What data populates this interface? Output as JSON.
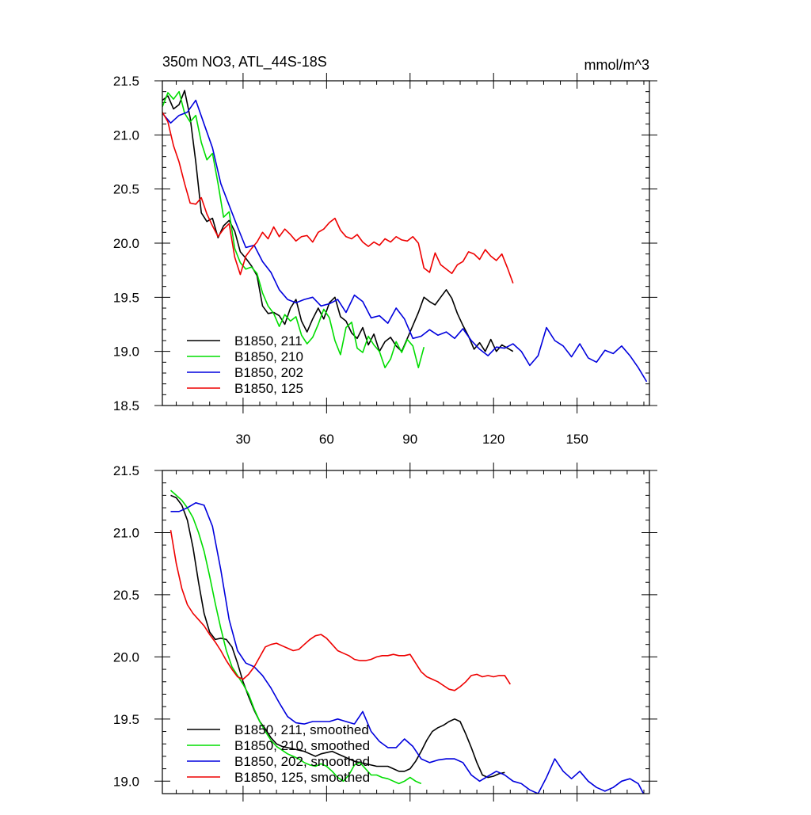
{
  "chart_data": [
    {
      "type": "line",
      "title": "350m NO3, ATL_44S-18S",
      "units": "mmol/m^3",
      "xlabel": "",
      "ylabel": "",
      "xlim": [
        1,
        176
      ],
      "ylim": [
        18.5,
        21.5
      ],
      "xticks": [
        30,
        60,
        90,
        120,
        150
      ],
      "yticks": [
        18.5,
        19.0,
        19.5,
        20.0,
        20.5,
        21.0,
        21.5
      ],
      "xtick_labels": [
        "30",
        "60",
        "90",
        "120",
        "150"
      ],
      "ytick_labels": [
        "18.5",
        "19.0",
        "19.5",
        "20.0",
        "20.5",
        "21.0",
        "21.5"
      ],
      "legend_position": "bottom-left",
      "series": [
        {
          "name": "B1850, 211",
          "color": "#000000",
          "x": [
            1,
            3,
            5,
            7,
            9,
            11,
            13,
            15,
            17,
            19,
            21,
            23,
            25,
            27,
            29,
            31,
            33,
            35,
            37,
            39,
            41,
            43,
            45,
            47,
            49,
            51,
            53,
            55,
            57,
            59,
            61,
            63,
            65,
            67,
            69,
            71,
            73,
            75,
            77,
            79,
            81,
            83,
            85,
            87,
            89,
            91,
            93,
            95,
            97,
            99,
            101,
            103,
            105,
            107,
            109,
            111,
            113,
            115,
            117,
            119,
            121,
            123,
            125,
            127
          ],
          "y": [
            21.32,
            21.36,
            21.24,
            21.28,
            21.41,
            21.16,
            20.75,
            20.28,
            20.2,
            20.23,
            20.05,
            20.16,
            20.21,
            20.11,
            19.92,
            19.86,
            19.79,
            19.7,
            19.42,
            19.35,
            19.36,
            19.33,
            19.25,
            19.4,
            19.48,
            19.28,
            19.18,
            19.3,
            19.4,
            19.3,
            19.45,
            19.5,
            19.32,
            19.28,
            19.17,
            19.12,
            19.22,
            19.06,
            19.16,
            19.0,
            19.09,
            19.13,
            19.05,
            19.0,
            19.12,
            19.24,
            19.36,
            19.5,
            19.46,
            19.43,
            19.5,
            19.57,
            19.49,
            19.35,
            19.24,
            19.14,
            19.02,
            19.08,
            19.0,
            19.11,
            19.0,
            19.06,
            19.03,
            19.0
          ]
        },
        {
          "name": "B1850, 210",
          "color": "#00dd00",
          "x": [
            1,
            3,
            5,
            7,
            9,
            11,
            13,
            15,
            17,
            19,
            21,
            23,
            25,
            27,
            29,
            31,
            33,
            35,
            37,
            39,
            41,
            43,
            45,
            47,
            49,
            51,
            53,
            55,
            57,
            59,
            61,
            63,
            65,
            67,
            69,
            71,
            73,
            75,
            77,
            79,
            81,
            83,
            85,
            87,
            89,
            91,
            93,
            95
          ],
          "y": [
            21.26,
            21.39,
            21.33,
            21.4,
            21.2,
            21.12,
            21.18,
            20.93,
            20.77,
            20.83,
            20.55,
            20.24,
            20.29,
            19.95,
            19.82,
            19.76,
            19.78,
            19.72,
            19.54,
            19.42,
            19.35,
            19.23,
            19.34,
            19.28,
            19.32,
            19.15,
            19.07,
            19.13,
            19.25,
            19.39,
            19.31,
            19.1,
            18.97,
            19.22,
            19.27,
            19.03,
            18.99,
            19.14,
            19.06,
            19.0,
            18.85,
            18.93,
            19.09,
            18.99,
            19.11,
            19.05,
            18.85,
            19.04
          ]
        },
        {
          "name": "B1850, 202",
          "color": "#0000dd",
          "x": [
            1,
            4,
            7,
            10,
            13,
            16,
            19,
            22,
            25,
            28,
            31,
            34,
            37,
            40,
            43,
            46,
            49,
            52,
            55,
            58,
            61,
            64,
            67,
            70,
            73,
            76,
            79,
            82,
            85,
            88,
            91,
            94,
            97,
            100,
            103,
            106,
            109,
            112,
            115,
            118,
            121,
            124,
            127,
            130,
            133,
            136,
            139,
            142,
            145,
            148,
            151,
            154,
            157,
            160,
            163,
            166,
            169,
            172,
            175
          ],
          "y": [
            21.2,
            21.11,
            21.18,
            21.21,
            21.32,
            21.1,
            20.88,
            20.55,
            20.35,
            20.15,
            19.96,
            19.98,
            19.83,
            19.73,
            19.57,
            19.48,
            19.45,
            19.48,
            19.5,
            19.42,
            19.44,
            19.48,
            19.36,
            19.52,
            19.46,
            19.31,
            19.33,
            19.26,
            19.4,
            19.3,
            19.12,
            19.14,
            19.2,
            19.15,
            19.18,
            19.12,
            19.21,
            19.1,
            19.02,
            18.96,
            19.04,
            19.03,
            19.07,
            19.0,
            18.87,
            18.96,
            19.22,
            19.1,
            19.05,
            18.95,
            19.07,
            18.94,
            18.9,
            19.01,
            18.98,
            19.05,
            18.96,
            18.85,
            18.72
          ]
        },
        {
          "name": "B1850, 125",
          "color": "#ee0000",
          "x": [
            1,
            3,
            5,
            7,
            9,
            11,
            13,
            15,
            17,
            19,
            21,
            23,
            25,
            27,
            29,
            31,
            33,
            35,
            37,
            39,
            41,
            43,
            45,
            47,
            49,
            51,
            53,
            55,
            57,
            59,
            61,
            63,
            65,
            67,
            69,
            71,
            73,
            75,
            77,
            79,
            81,
            83,
            85,
            87,
            89,
            91,
            93,
            95,
            97,
            99,
            101,
            103,
            105,
            107,
            109,
            111,
            113,
            115,
            117,
            119,
            121,
            123,
            125,
            127
          ],
          "y": [
            21.21,
            21.12,
            20.9,
            20.75,
            20.55,
            20.37,
            20.36,
            20.42,
            20.27,
            20.16,
            20.06,
            20.13,
            20.18,
            19.87,
            19.71,
            19.88,
            19.95,
            20.01,
            20.1,
            20.04,
            20.15,
            20.06,
            20.13,
            20.08,
            20.02,
            20.06,
            20.07,
            20.01,
            20.1,
            20.13,
            20.19,
            20.23,
            20.12,
            20.06,
            20.04,
            20.08,
            20.01,
            19.97,
            20.01,
            19.98,
            20.04,
            20.01,
            20.06,
            20.03,
            20.02,
            20.06,
            20.0,
            19.77,
            19.73,
            19.91,
            19.8,
            19.76,
            19.72,
            19.8,
            19.83,
            19.92,
            19.9,
            19.85,
            19.94,
            19.88,
            19.84,
            19.9,
            19.77,
            19.63
          ]
        }
      ]
    },
    {
      "type": "line",
      "title": "",
      "xlabel": "",
      "ylabel": "",
      "xlim": [
        1,
        176
      ],
      "ylim": [
        18.9,
        21.5
      ],
      "xticks": [
        30,
        60,
        90,
        120,
        150
      ],
      "yticks": [
        19.0,
        19.5,
        20.0,
        20.5,
        21.0,
        21.5
      ],
      "ytick_labels": [
        "19.0",
        "19.5",
        "20.0",
        "20.5",
        "21.0",
        "21.5"
      ],
      "legend_position": "bottom-left",
      "series": [
        {
          "name": "B1850, 211, smoothed",
          "color": "#000000",
          "x": [
            4,
            6,
            8,
            10,
            12,
            14,
            16,
            18,
            20,
            22,
            24,
            26,
            28,
            30,
            32,
            34,
            36,
            38,
            40,
            42,
            44,
            46,
            48,
            50,
            52,
            54,
            56,
            58,
            60,
            62,
            64,
            66,
            68,
            70,
            72,
            74,
            76,
            78,
            80,
            82,
            84,
            86,
            88,
            90,
            92,
            94,
            96,
            98,
            100,
            102,
            104,
            106,
            108,
            110,
            112,
            114,
            116,
            118,
            120,
            122,
            124
          ],
          "y": [
            21.3,
            21.28,
            21.22,
            21.1,
            20.88,
            20.6,
            20.35,
            20.2,
            20.14,
            20.15,
            20.14,
            20.08,
            19.95,
            19.8,
            19.68,
            19.57,
            19.48,
            19.42,
            19.35,
            19.3,
            19.28,
            19.27,
            19.26,
            19.25,
            19.24,
            19.22,
            19.2,
            19.22,
            19.23,
            19.24,
            19.22,
            19.2,
            19.18,
            19.16,
            19.15,
            19.14,
            19.13,
            19.12,
            19.12,
            19.12,
            19.1,
            19.08,
            19.08,
            19.1,
            19.16,
            19.24,
            19.33,
            19.4,
            19.43,
            19.45,
            19.48,
            19.5,
            19.48,
            19.38,
            19.27,
            19.15,
            19.05,
            19.03,
            19.04,
            19.06,
            19.07
          ]
        },
        {
          "name": "B1850, 210, smoothed",
          "color": "#00dd00",
          "x": [
            4,
            6,
            8,
            10,
            12,
            14,
            16,
            18,
            20,
            22,
            24,
            26,
            28,
            30,
            32,
            34,
            36,
            38,
            40,
            42,
            44,
            46,
            48,
            50,
            52,
            54,
            56,
            58,
            60,
            62,
            64,
            66,
            68,
            70,
            72,
            74,
            76,
            78,
            80,
            82,
            84,
            86,
            88,
            90,
            92,
            94
          ],
          "y": [
            21.34,
            21.3,
            21.26,
            21.2,
            21.12,
            21.0,
            20.85,
            20.65,
            20.43,
            20.23,
            20.05,
            19.92,
            19.85,
            19.78,
            19.7,
            19.58,
            19.48,
            19.4,
            19.33,
            19.28,
            19.25,
            19.22,
            19.2,
            19.18,
            19.15,
            19.13,
            19.12,
            19.14,
            19.12,
            19.08,
            19.03,
            19.0,
            19.05,
            19.13,
            19.15,
            19.1,
            19.05,
            19.05,
            19.03,
            19.02,
            19.0,
            18.98,
            19.0,
            19.03,
            19.0,
            18.98
          ]
        },
        {
          "name": "B1850, 202, smoothed",
          "color": "#0000dd",
          "x": [
            4,
            7,
            10,
            13,
            16,
            19,
            22,
            25,
            28,
            31,
            34,
            37,
            40,
            43,
            46,
            49,
            52,
            55,
            58,
            61,
            64,
            67,
            70,
            73,
            76,
            79,
            82,
            85,
            88,
            91,
            94,
            97,
            100,
            103,
            106,
            109,
            112,
            115,
            118,
            121,
            124,
            127,
            130,
            133,
            136,
            139,
            142,
            145,
            148,
            151,
            154,
            157,
            160,
            163,
            166,
            169,
            172,
            175
          ],
          "y": [
            21.17,
            21.17,
            21.2,
            21.24,
            21.22,
            21.05,
            20.7,
            20.3,
            20.05,
            19.95,
            19.92,
            19.85,
            19.75,
            19.63,
            19.52,
            19.47,
            19.46,
            19.48,
            19.48,
            19.48,
            19.5,
            19.48,
            19.46,
            19.56,
            19.4,
            19.32,
            19.27,
            19.27,
            19.34,
            19.28,
            19.18,
            19.15,
            19.17,
            19.18,
            19.18,
            19.15,
            19.05,
            19.0,
            19.04,
            19.08,
            19.05,
            19.0,
            18.98,
            18.93,
            18.9,
            19.03,
            19.18,
            19.08,
            19.02,
            19.08,
            19.0,
            18.95,
            18.92,
            18.95,
            19.0,
            19.02,
            18.98,
            18.85
          ]
        },
        {
          "name": "B1850, 125, smoothed",
          "color": "#ee0000",
          "x": [
            4,
            6,
            8,
            10,
            12,
            14,
            16,
            18,
            20,
            22,
            24,
            26,
            28,
            30,
            32,
            34,
            36,
            38,
            40,
            42,
            44,
            46,
            48,
            50,
            52,
            54,
            56,
            58,
            60,
            62,
            64,
            66,
            68,
            70,
            72,
            74,
            76,
            78,
            80,
            82,
            84,
            86,
            88,
            90,
            92,
            94,
            96,
            98,
            100,
            102,
            104,
            106,
            108,
            110,
            112,
            114,
            116,
            118,
            120,
            122,
            124,
            126
          ],
          "y": [
            21.02,
            20.75,
            20.55,
            20.42,
            20.35,
            20.3,
            20.25,
            20.18,
            20.12,
            20.05,
            19.97,
            19.9,
            19.84,
            19.82,
            19.86,
            19.92,
            20.0,
            20.08,
            20.1,
            20.11,
            20.09,
            20.07,
            20.05,
            20.06,
            20.1,
            20.14,
            20.17,
            20.18,
            20.15,
            20.1,
            20.05,
            20.03,
            20.01,
            19.98,
            19.97,
            19.97,
            19.98,
            20.0,
            20.01,
            20.01,
            20.02,
            20.01,
            20.01,
            20.02,
            19.95,
            19.88,
            19.84,
            19.82,
            19.8,
            19.77,
            19.74,
            19.73,
            19.76,
            19.8,
            19.85,
            19.86,
            19.84,
            19.85,
            19.84,
            19.85,
            19.85,
            19.78
          ]
        }
      ]
    }
  ]
}
